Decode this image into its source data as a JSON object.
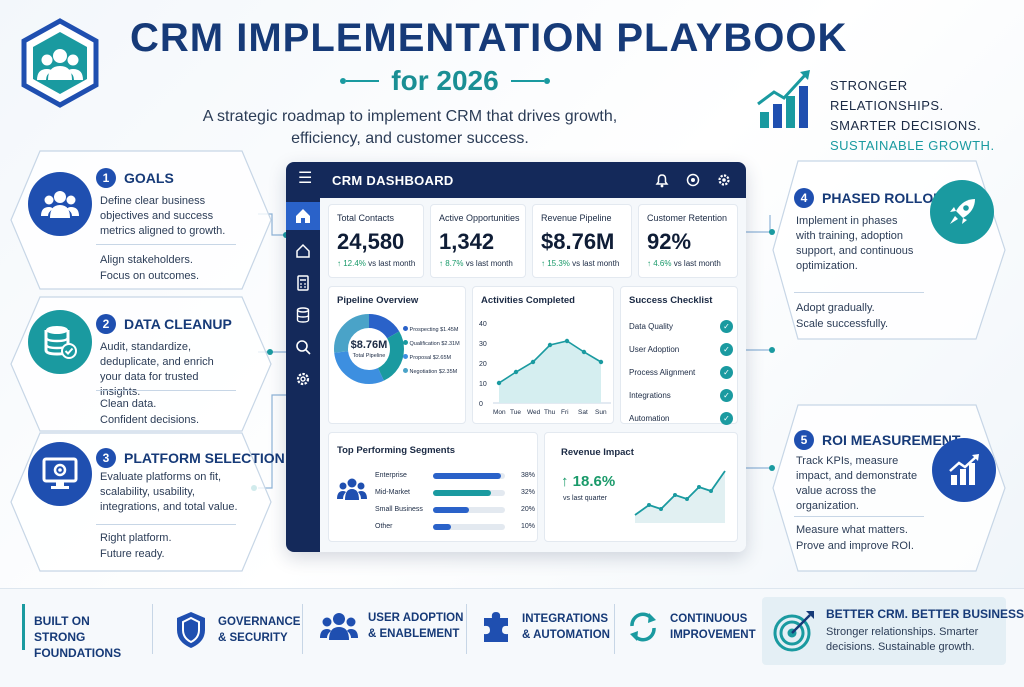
{
  "header": {
    "title": "CRM IMPLEMENTATION PLAYBOOK",
    "subtitle": "for 2026",
    "tagline": "A strategic roadmap to implement CRM that drives growth, efficiency, and customer success.",
    "slogan_1": "STRONGER RELATIONSHIPS.",
    "slogan_2": "SMARTER DECISIONS.",
    "slogan_3": "SUSTAINABLE GROWTH."
  },
  "steps": [
    {
      "num": "1",
      "title": "GOALS",
      "desc": "Define clear business objectives and success metrics aligned to growth.",
      "note_1": "Align stakeholders.",
      "note_2": "Focus on outcomes."
    },
    {
      "num": "2",
      "title": "DATA CLEANUP",
      "desc": "Audit, standardize, deduplicate, and enrich your data for trusted insights.",
      "note_1": "Clean data.",
      "note_2": "Confident decisions."
    },
    {
      "num": "3",
      "title": "PLATFORM SELECTION",
      "desc": "Evaluate platforms on fit, scalability, usability, integrations, and total value.",
      "note_1": "Right platform.",
      "note_2": "Future ready."
    },
    {
      "num": "4",
      "title": "PHASED ROLLOUT",
      "desc": "Implement in phases with training, adoption support, and continuous optimization.",
      "note_1": "Adopt gradually.",
      "note_2": "Scale successfully."
    },
    {
      "num": "5",
      "title": "ROI MEASUREMENT",
      "desc": "Track KPIs, measure impact, and demonstrate value across the organization.",
      "note_1": "Measure what matters.",
      "note_2": "Prove and improve ROI."
    }
  ],
  "dashboard": {
    "title": "CRM DASHBOARD",
    "kpis": [
      {
        "label": "Total Contacts",
        "value": "24,580",
        "change": "↑ 12.4%",
        "suffix": "vs last month"
      },
      {
        "label": "Active Opportunities",
        "value": "1,342",
        "change": "↑ 8.7%",
        "suffix": "vs last month"
      },
      {
        "label": "Revenue Pipeline",
        "value": "$8.76M",
        "change": "↑ 15.3%",
        "suffix": "vs last month"
      },
      {
        "label": "Customer Retention",
        "value": "92%",
        "change": "↑ 4.6%",
        "suffix": "vs last month"
      }
    ],
    "pipeline": {
      "title": "Pipeline Overview",
      "center_value": "$8.76M",
      "center_label": "Total Pipeline",
      "legend": [
        {
          "label": "Prospecting $1.45M",
          "color": "#2a62c9"
        },
        {
          "label": "Qualification $2.31M",
          "color": "#1a9aa0"
        },
        {
          "label": "Proposal $2.65M",
          "color": "#3d8fe0"
        },
        {
          "label": "Negotiation $2.35M",
          "color": "#4aa3c8"
        }
      ]
    },
    "activities": {
      "title": "Activities Completed",
      "yticks": [
        "40",
        "30",
        "20",
        "10",
        "0"
      ],
      "days": [
        "Mon",
        "Tue",
        "Wed",
        "Thu",
        "Fri",
        "Sat",
        "Sun"
      ]
    },
    "checklist": {
      "title": "Success Checklist",
      "items": [
        "Data Quality",
        "User Adoption",
        "Process Alignment",
        "Integrations",
        "Automation"
      ]
    },
    "segments": {
      "title": "Top Performing Segments",
      "rows": [
        {
          "label": "Enterprise",
          "pct": "38%",
          "value": 38,
          "color": "#2a62c9"
        },
        {
          "label": "Mid-Market",
          "pct": "32%",
          "value": 32,
          "color": "#1a9aa0"
        },
        {
          "label": "Small Business",
          "pct": "20%",
          "value": 20,
          "color": "#2a62c9"
        },
        {
          "label": "Other",
          "pct": "10%",
          "value": 10,
          "color": "#2a62c9"
        }
      ]
    },
    "revenue": {
      "title": "Revenue Impact",
      "value": "↑ 18.6%",
      "label": "vs last quarter"
    }
  },
  "footer": {
    "foundation": "BUILT ON STRONG FOUNDATIONS",
    "items": [
      {
        "label": "GOVERNANCE & SECURITY",
        "icon": "shield-icon"
      },
      {
        "label": "USER ADOPTION & ENABLEMENT",
        "icon": "users-icon"
      },
      {
        "label": "INTEGRATIONS & AUTOMATION",
        "icon": "puzzle-icon"
      },
      {
        "label": "CONTINUOUS IMPROVEMENT",
        "icon": "refresh-icon"
      }
    ],
    "better_title": "BETTER CRM. BETTER BUSINESS.",
    "better_desc": "Stronger relationships. Smarter decisions. Sustainable growth."
  },
  "colors": {
    "navy": "#163a78",
    "blue": "#1f4fb0",
    "teal": "#1a9aa0",
    "dash_bar": "#14295a"
  }
}
